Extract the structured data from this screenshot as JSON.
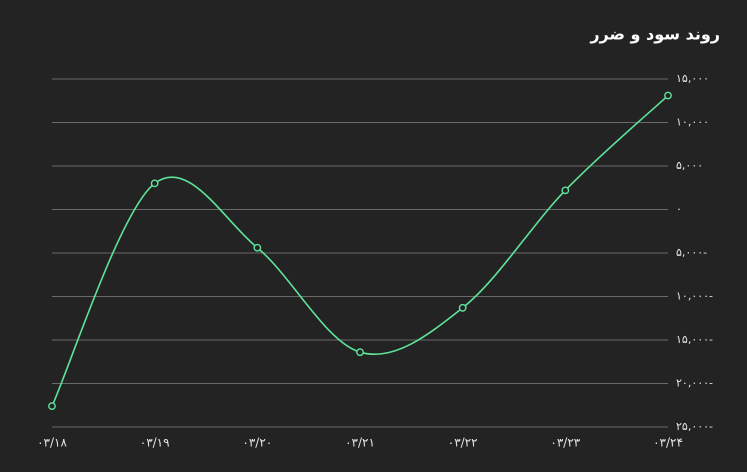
{
  "chart_data": {
    "type": "line",
    "title": "روند سود و ضرر",
    "categories": [
      "۰۳/۱۸",
      "۰۳/۱۹",
      "۰۳/۲۰",
      "۰۳/۲۱",
      "۰۳/۲۲",
      "۰۳/۲۳",
      "۰۳/۲۴"
    ],
    "series": [
      {
        "color": "#5ee39a",
        "values": [
          -22600,
          3000,
          -4400,
          -16400,
          -11300,
          2200,
          13100
        ]
      }
    ],
    "ylim": [
      -25000,
      15000
    ],
    "yticks": [
      {
        "value": 15000,
        "label": "۱۵,۰۰۰"
      },
      {
        "value": 10000,
        "label": "۱۰,۰۰۰"
      },
      {
        "value": 5000,
        "label": "۵,۰۰۰"
      },
      {
        "value": 0,
        "label": "۰"
      },
      {
        "value": -5000,
        "label": "۵,۰۰۰-"
      },
      {
        "value": -10000,
        "label": "۱۰,۰۰۰-"
      },
      {
        "value": -15000,
        "label": "۱۵,۰۰۰-"
      },
      {
        "value": -20000,
        "label": "۲۰,۰۰۰-"
      },
      {
        "value": -25000,
        "label": "۲۵,۰۰۰-"
      }
    ],
    "grid": true
  }
}
